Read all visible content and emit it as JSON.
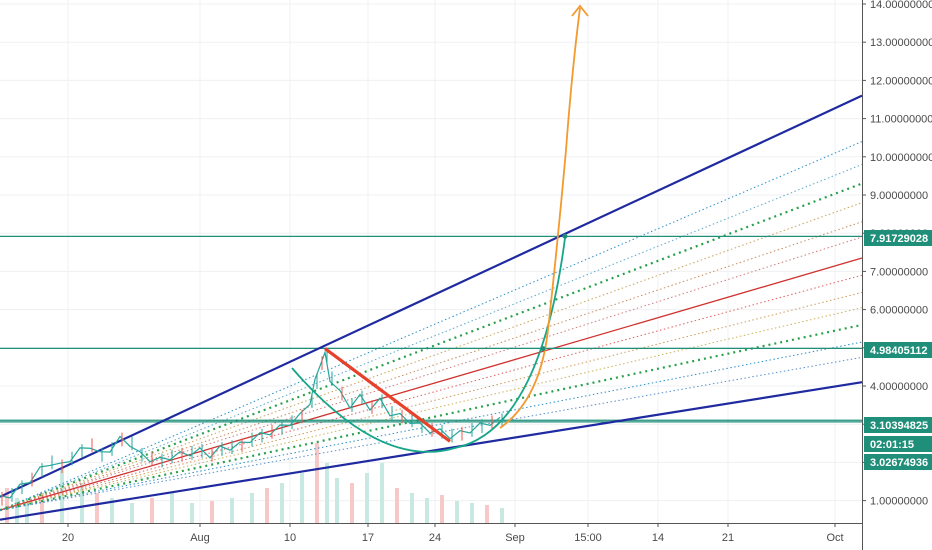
{
  "chart_data": {
    "type": "line",
    "title": "",
    "xlabel": "",
    "ylabel": "",
    "ylim": [
      0.5,
      14.2
    ],
    "y_ticks": [
      "1.00000000",
      "2.00000000",
      "3.00000000",
      "4.00000000",
      "5.00000000",
      "6.00000000",
      "7.00000000",
      "8.00000000",
      "9.00000000",
      "10.00000000",
      "11.00000000",
      "12.00000000",
      "13.00000000",
      "14.00000000"
    ],
    "x_ticks": [
      "20",
      "Aug",
      "10",
      "17",
      "24",
      "Sep",
      "15:00",
      "14",
      "21",
      "Oct"
    ],
    "price_tags": [
      {
        "label": "7.91729028",
        "value": 7.91729028,
        "color": "#1f8f7a"
      },
      {
        "label": "4.98405112",
        "value": 4.98405112,
        "color": "#1f8f7a"
      },
      {
        "label": "3.10394825",
        "value": 3.10394825,
        "color": "#1f8f7a"
      },
      {
        "label": "02:01:15",
        "value": 2.58,
        "color": "#1f8f7a"
      },
      {
        "label": "3.02674936",
        "value": 2.2,
        "color": "#1f8f7a"
      }
    ],
    "horizontal_lines": [
      7.91729028,
      4.98405112,
      3.10394825,
      3.06
    ],
    "channel": {
      "upper": {
        "x": [
          0,
          862
        ],
        "y": [
          1.1,
          11.6
        ],
        "color": "#1f2aa0"
      },
      "lower": {
        "x": [
          0,
          862
        ],
        "y": [
          0.5,
          4.1
        ],
        "color": "#1f2aa0"
      }
    },
    "fan_lines": [
      {
        "y_end": 10.4,
        "color": "#2a8fc9",
        "style": "dot"
      },
      {
        "y_end": 9.8,
        "color": "#5aa9c9",
        "style": "dot"
      },
      {
        "y_end": 9.3,
        "color": "#27a04a",
        "style": "dot-bold"
      },
      {
        "y_end": 8.8,
        "color": "#c9a25a",
        "style": "dot"
      },
      {
        "y_end": 8.3,
        "color": "#c98a5a",
        "style": "dot"
      },
      {
        "y_end": 7.9,
        "color": "#d07a7a",
        "style": "dot"
      },
      {
        "y_end": 7.35,
        "color": "#d0322f",
        "style": "solid"
      },
      {
        "y_end": 6.9,
        "color": "#e06060",
        "style": "dot"
      },
      {
        "y_end": 6.45,
        "color": "#d09a5a",
        "style": "dot"
      },
      {
        "y_end": 6.05,
        "color": "#c9b25a",
        "style": "dot"
      },
      {
        "y_end": 5.6,
        "color": "#27a04a",
        "style": "dot-bold"
      },
      {
        "y_end": 5.15,
        "color": "#2a8fc9",
        "style": "dot"
      },
      {
        "y_end": 4.75,
        "color": "#5a8fc9",
        "style": "dot"
      }
    ],
    "price": {
      "x": [
        0,
        10,
        20,
        30,
        40,
        50,
        60,
        70,
        80,
        90,
        100,
        110,
        120,
        130,
        140,
        150,
        160,
        170,
        180,
        190,
        200,
        210,
        220,
        230,
        240,
        250,
        260,
        270,
        280,
        290,
        300,
        310,
        315,
        320,
        325,
        330,
        340,
        350,
        360,
        370,
        380,
        390,
        400,
        410,
        420,
        430,
        440,
        450,
        460,
        470,
        480,
        490,
        500
      ],
      "y": [
        1.05,
        1.15,
        1.35,
        1.55,
        1.8,
        2.0,
        1.9,
        2.1,
        2.3,
        2.45,
        2.2,
        2.35,
        2.6,
        2.5,
        2.2,
        2.1,
        2.05,
        2.15,
        2.2,
        2.25,
        2.3,
        2.2,
        2.35,
        2.4,
        2.45,
        2.6,
        2.7,
        2.8,
        2.9,
        3.05,
        3.2,
        3.6,
        4.1,
        4.6,
        4.8,
        4.2,
        3.8,
        3.5,
        3.7,
        3.45,
        3.6,
        3.3,
        3.2,
        3.1,
        2.95,
        2.85,
        2.8,
        2.7,
        2.75,
        2.85,
        2.95,
        3.05,
        3.1
      ],
      "color": "#26a69a"
    },
    "volume": {
      "x": [
        5,
        15,
        25,
        40,
        60,
        80,
        95,
        110,
        130,
        150,
        170,
        190,
        210,
        230,
        250,
        265,
        280,
        300,
        315,
        325,
        335,
        350,
        365,
        380,
        395,
        410,
        425,
        440,
        455,
        470,
        485,
        500
      ],
      "v": [
        0.35,
        0.25,
        0.2,
        0.3,
        0.55,
        0.4,
        0.3,
        0.25,
        0.2,
        0.25,
        0.3,
        0.2,
        0.22,
        0.25,
        0.3,
        0.35,
        0.4,
        0.5,
        0.8,
        0.6,
        0.45,
        0.4,
        0.5,
        0.6,
        0.35,
        0.3,
        0.25,
        0.28,
        0.22,
        0.2,
        0.18,
        0.15
      ]
    },
    "drawings": {
      "cup_arc": {
        "color": "#17a589"
      },
      "red_trendline": {
        "from": [
          325,
          4.98
        ],
        "to": [
          450,
          2.55
        ],
        "color": "#e8412b"
      },
      "projection_arrow": {
        "color": "#f29a2e"
      }
    }
  }
}
